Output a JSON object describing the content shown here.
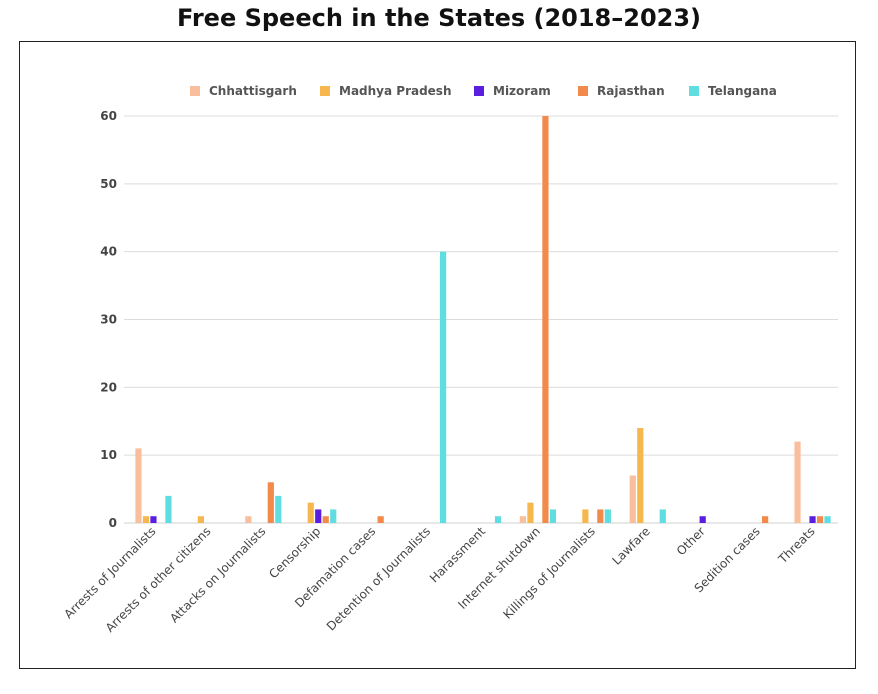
{
  "chart_data": {
    "type": "bar",
    "title": "Free Speech in the States (2018–2023)",
    "xlabel": "",
    "ylabel": "",
    "ylim": [
      0,
      60
    ],
    "yticks": [
      0,
      10,
      20,
      30,
      40,
      50,
      60
    ],
    "grid": true,
    "legend_position": "top",
    "categories": [
      "Arrests of Journalists",
      "Arrests of other citizens",
      "Attacks on Journalists",
      "Censorship",
      "Defamation cases",
      "Detention of Journalists",
      "Harassment",
      "Internet shutdown",
      "Killings of Journalists",
      "Lawfare",
      "Other",
      "Sedition cases",
      "Threats"
    ],
    "series": [
      {
        "name": "Chhattisgarh",
        "color": "#f9bf9c",
        "values": [
          11,
          0,
          1,
          0,
          0,
          0,
          0,
          1,
          0,
          7,
          0,
          0,
          12
        ]
      },
      {
        "name": "Madhya Pradesh",
        "color": "#f6b84e",
        "values": [
          1,
          1,
          0,
          3,
          0,
          0,
          0,
          3,
          2,
          14,
          0,
          0,
          0
        ]
      },
      {
        "name": "Mizoram",
        "color": "#5b1ee0",
        "values": [
          1,
          0,
          0,
          2,
          0,
          0,
          0,
          0,
          0,
          0,
          1,
          0,
          1
        ]
      },
      {
        "name": "Rajasthan",
        "color": "#f28a4b",
        "values": [
          0,
          0,
          6,
          1,
          1,
          0,
          0,
          60,
          2,
          0,
          0,
          1,
          1
        ]
      },
      {
        "name": "Telangana",
        "color": "#5fdde0",
        "values": [
          4,
          0,
          4,
          2,
          0,
          40,
          1,
          2,
          2,
          2,
          0,
          0,
          1
        ]
      }
    ]
  }
}
